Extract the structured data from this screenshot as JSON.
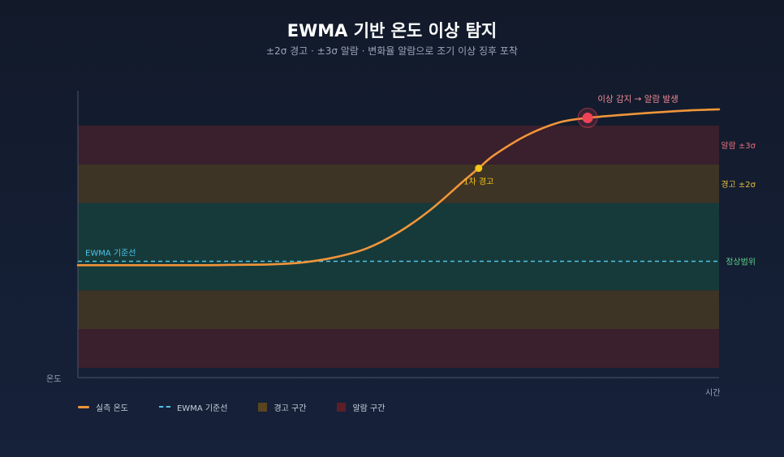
{
  "title": "EWMA 기반 온도 이상 탐지",
  "subtitle": "±2σ 경고 · ±3σ 알람 · 변화율 알람으로 조기 이상 징후 포착",
  "colors": {
    "actual": "#f0953a",
    "baseline": "#4fc3e8",
    "normal_band": "#163a3a",
    "warning_band": "#3d3426",
    "alarm_band": "#3a1f2c",
    "warning_point": "#f5c518",
    "alarm_point": "#ef4456"
  },
  "chart_data": {
    "type": "line",
    "xlabel": "시간",
    "ylabel": "온도",
    "xlim": [
      0,
      100
    ],
    "ylim": [
      -3.0,
      4.4
    ],
    "baseline_label": "EWMA 기준선",
    "baseline_value": 0,
    "bands": [
      {
        "kind": "alarm",
        "from": 2.5,
        "to": 3.5,
        "label": "알람 ±3σ"
      },
      {
        "kind": "warning",
        "from": 1.5,
        "to": 2.5,
        "label": "경고 ±2σ"
      },
      {
        "kind": "normal",
        "from": -0.75,
        "to": 1.5,
        "label": "정상범위"
      },
      {
        "kind": "warning",
        "from": -1.75,
        "to": -0.75,
        "label": ""
      },
      {
        "kind": "alarm",
        "from": -2.75,
        "to": -1.75,
        "label": ""
      }
    ],
    "series": [
      {
        "name": "실측 온도",
        "x": [
          0,
          10,
          20,
          25,
          30,
          35,
          40,
          45,
          50,
          55,
          60,
          62.5,
          65,
          70,
          75,
          79.5,
          85,
          90,
          95,
          100
        ],
        "y": [
          -0.1,
          -0.1,
          -0.1,
          -0.09,
          -0.08,
          -0.03,
          0.1,
          0.33,
          0.75,
          1.33,
          2.05,
          2.4,
          2.75,
          3.25,
          3.58,
          3.7,
          3.78,
          3.84,
          3.89,
          3.92
        ]
      }
    ],
    "events": [
      {
        "x": 62.5,
        "y": 2.4,
        "label": "1차 경고",
        "kind": "warning"
      },
      {
        "x": 79.5,
        "y": 3.7,
        "label": "이상 감지 → 알람 발생",
        "kind": "alarm"
      }
    ]
  },
  "legend": [
    {
      "label": "실측 온도",
      "kind": "line"
    },
    {
      "label": "EWMA 기준선",
      "kind": "dash"
    },
    {
      "label": "경고 구간",
      "kind": "warning-box"
    },
    {
      "label": "알람 구간",
      "kind": "alarm-box"
    }
  ]
}
